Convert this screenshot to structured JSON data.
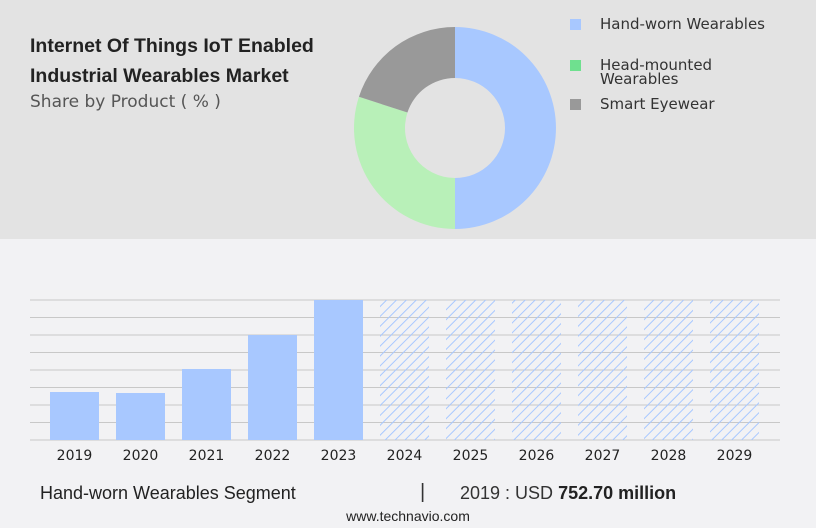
{
  "header": {
    "title": "Internet Of Things IoT Enabled Industrial Wearables Market",
    "subtitle": "Share by Product ( % )"
  },
  "chart_data": [
    {
      "type": "pie",
      "variant": "donut",
      "title": "Internet Of Things IoT Enabled Industrial Wearables Market",
      "subtitle": "Share by Product ( % )",
      "legend_position": "right",
      "slices": [
        {
          "name": "Hand-worn Wearables",
          "value": 50,
          "color": "#a8c8ff",
          "legend_color": "#a8c8ff"
        },
        {
          "name": "Head-mounted Wearables",
          "value": 30,
          "color": "#b8f0b8",
          "legend_color": "#6fe08f"
        },
        {
          "name": "Smart Eyewear",
          "value": 20,
          "color": "#999999",
          "legend_color": "#999999"
        }
      ]
    },
    {
      "type": "bar",
      "xlabel": "",
      "ylabel": "",
      "grid": true,
      "unit": "USD million",
      "categories": [
        "2019",
        "2020",
        "2021",
        "2022",
        "2023",
        "2024",
        "2025",
        "2026",
        "2027",
        "2028",
        "2029"
      ],
      "values": [
        752.7,
        737,
        1113,
        1646,
        2195,
        null,
        null,
        null,
        null,
        null,
        null
      ],
      "forecast": [
        false,
        false,
        false,
        false,
        false,
        true,
        true,
        true,
        true,
        true,
        true
      ],
      "ylim": [
        0,
        2195
      ],
      "color": "#a8c8ff"
    }
  ],
  "footer": {
    "segment": "Hand-worn Wearables Segment",
    "separator": "|",
    "year_label": "2019 : USD",
    "value": "752.70 million",
    "site": "www.technavio.com"
  }
}
